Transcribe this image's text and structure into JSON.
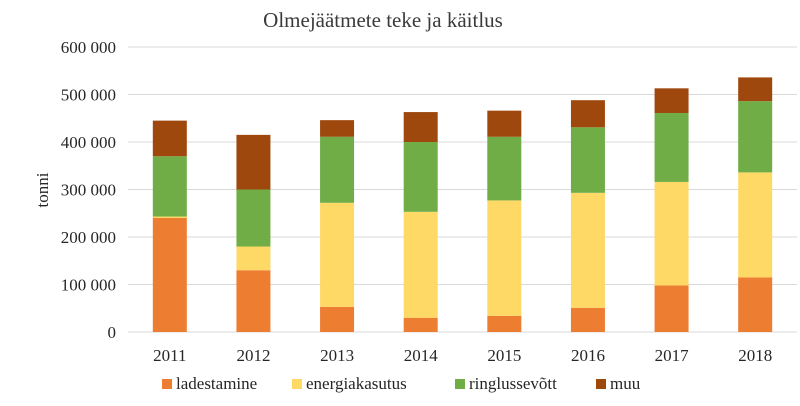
{
  "chart_data": {
    "type": "bar",
    "stacked": true,
    "title": "Olmejäätmete teke ja käitlus",
    "xlabel": "",
    "ylabel": "tonni",
    "ylim": [
      0,
      600000
    ],
    "yticks": [
      0,
      100000,
      200000,
      300000,
      400000,
      500000,
      600000
    ],
    "ytick_labels": [
      "0",
      "100 000",
      "200 000",
      "300 000",
      "400 000",
      "500 000",
      "600 000"
    ],
    "grid": true,
    "legend_position": "bottom",
    "categories": [
      "2011",
      "2012",
      "2013",
      "2014",
      "2015",
      "2016",
      "2017",
      "2018"
    ],
    "series": [
      {
        "name": "ladestamine",
        "color": "#ED7D31",
        "values": [
          240000,
          130000,
          53000,
          30000,
          34000,
          51000,
          98000,
          115000
        ]
      },
      {
        "name": "energiakasutus",
        "color": "#FFD966",
        "values": [
          3000,
          50000,
          219000,
          223000,
          243000,
          242000,
          218000,
          221000
        ]
      },
      {
        "name": "ringlussevõtt",
        "color": "#70AD47",
        "values": [
          127000,
          120000,
          139000,
          147000,
          134000,
          138000,
          145000,
          150000
        ]
      },
      {
        "name": "muu",
        "color": "#9E480E",
        "values": [
          75000,
          115000,
          35000,
          63000,
          55000,
          57000,
          52000,
          50000
        ]
      }
    ]
  }
}
